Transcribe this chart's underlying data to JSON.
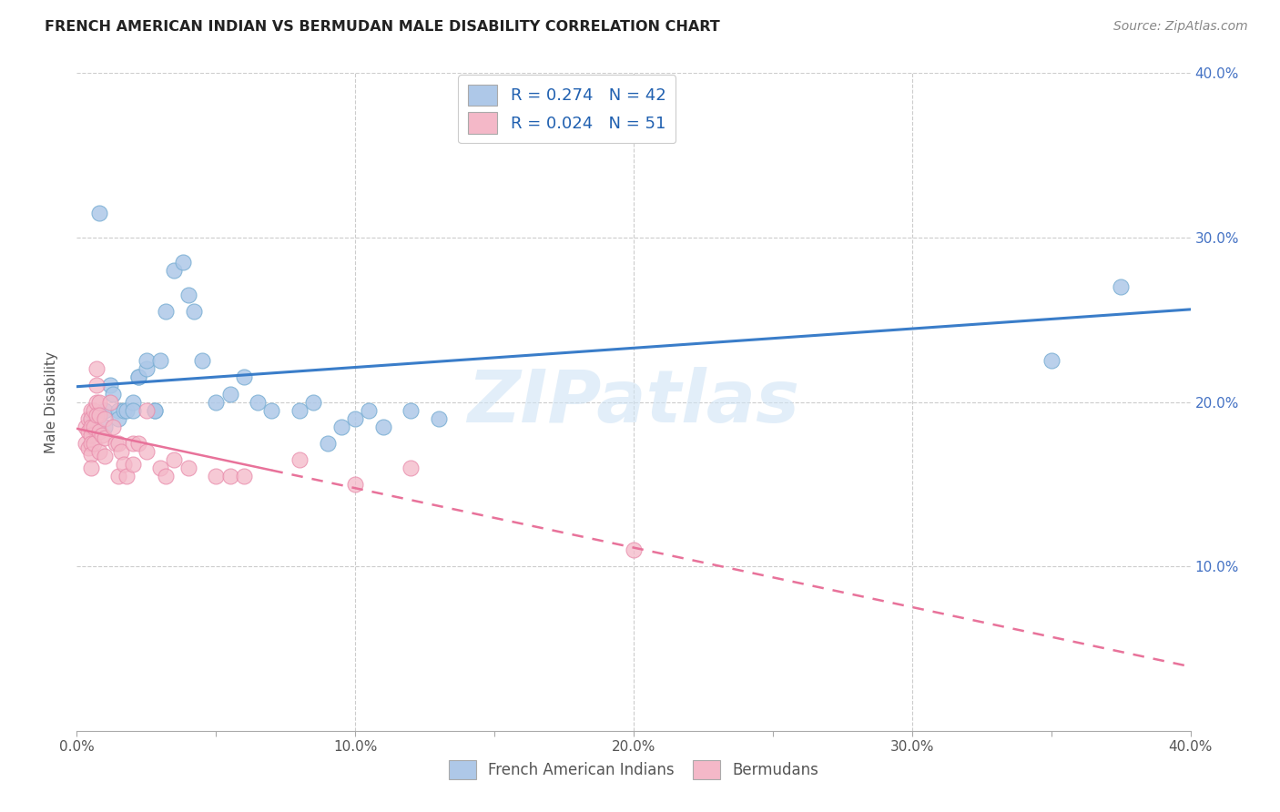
{
  "title": "FRENCH AMERICAN INDIAN VS BERMUDAN MALE DISABILITY CORRELATION CHART",
  "source": "Source: ZipAtlas.com",
  "ylabel": "Male Disability",
  "xlim": [
    0,
    0.4
  ],
  "ylim": [
    0,
    0.4
  ],
  "xtick_labels": [
    "0.0%",
    "",
    "10.0%",
    "",
    "20.0%",
    "",
    "30.0%",
    "",
    "40.0%"
  ],
  "xtick_vals": [
    0.0,
    0.05,
    0.1,
    0.15,
    0.2,
    0.25,
    0.3,
    0.35,
    0.4
  ],
  "ytick_labels_right": [
    "10.0%",
    "20.0%",
    "30.0%",
    "40.0%"
  ],
  "ytick_vals": [
    0.1,
    0.2,
    0.3,
    0.4
  ],
  "legend_r_blue": "R = 0.274",
  "legend_n_blue": "N = 42",
  "legend_r_pink": "R = 0.024",
  "legend_n_pink": "N = 51",
  "blue_color": "#aec8e8",
  "blue_edge_color": "#7aafd4",
  "blue_line_color": "#3a7dc9",
  "pink_color": "#f4b8c8",
  "pink_edge_color": "#e88aaa",
  "pink_line_color": "#e8729a",
  "watermark": "ZIPatlas",
  "blue_scatter_x": [
    0.005,
    0.008,
    0.01,
    0.01,
    0.012,
    0.013,
    0.015,
    0.015,
    0.017,
    0.018,
    0.02,
    0.02,
    0.022,
    0.022,
    0.025,
    0.025,
    0.028,
    0.028,
    0.03,
    0.032,
    0.035,
    0.038,
    0.04,
    0.042,
    0.045,
    0.05,
    0.055,
    0.06,
    0.065,
    0.07,
    0.08,
    0.085,
    0.09,
    0.095,
    0.1,
    0.105,
    0.11,
    0.12,
    0.13,
    0.2,
    0.35,
    0.375
  ],
  "blue_scatter_y": [
    0.19,
    0.315,
    0.195,
    0.185,
    0.21,
    0.205,
    0.195,
    0.19,
    0.195,
    0.195,
    0.2,
    0.195,
    0.215,
    0.215,
    0.22,
    0.225,
    0.195,
    0.195,
    0.225,
    0.255,
    0.28,
    0.285,
    0.265,
    0.255,
    0.225,
    0.2,
    0.205,
    0.215,
    0.2,
    0.195,
    0.195,
    0.2,
    0.175,
    0.185,
    0.19,
    0.195,
    0.185,
    0.195,
    0.19,
    0.365,
    0.225,
    0.27
  ],
  "pink_scatter_x": [
    0.003,
    0.003,
    0.004,
    0.004,
    0.004,
    0.005,
    0.005,
    0.005,
    0.005,
    0.005,
    0.005,
    0.005,
    0.006,
    0.006,
    0.006,
    0.007,
    0.007,
    0.007,
    0.007,
    0.008,
    0.008,
    0.008,
    0.008,
    0.009,
    0.01,
    0.01,
    0.01,
    0.012,
    0.013,
    0.014,
    0.015,
    0.015,
    0.016,
    0.017,
    0.018,
    0.02,
    0.02,
    0.022,
    0.025,
    0.025,
    0.03,
    0.032,
    0.035,
    0.04,
    0.05,
    0.055,
    0.06,
    0.08,
    0.1,
    0.12,
    0.2
  ],
  "pink_scatter_y": [
    0.185,
    0.175,
    0.19,
    0.182,
    0.172,
    0.195,
    0.19,
    0.185,
    0.18,
    0.175,
    0.168,
    0.16,
    0.195,
    0.185,
    0.175,
    0.22,
    0.21,
    0.2,
    0.192,
    0.2,
    0.192,
    0.182,
    0.17,
    0.18,
    0.19,
    0.178,
    0.167,
    0.2,
    0.185,
    0.175,
    0.175,
    0.155,
    0.17,
    0.162,
    0.155,
    0.175,
    0.162,
    0.175,
    0.195,
    0.17,
    0.16,
    0.155,
    0.165,
    0.16,
    0.155,
    0.155,
    0.155,
    0.165,
    0.15,
    0.16,
    0.11
  ],
  "grid_color": "#cccccc",
  "grid_style": "--",
  "bg_color": "#ffffff"
}
